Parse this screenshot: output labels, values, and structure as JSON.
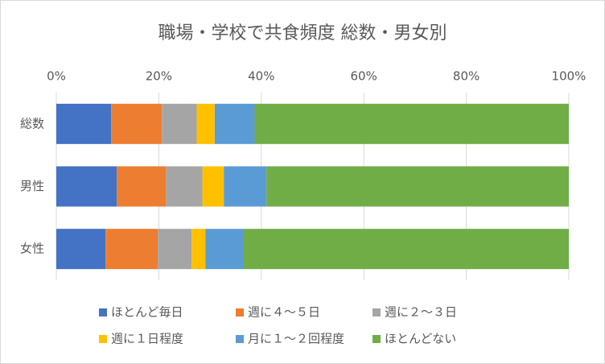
{
  "chart_data": {
    "type": "stacked_barh",
    "title": "職場・学校で共食頻度 総数・男女別",
    "categories": [
      "総数",
      "男性",
      "女性"
    ],
    "series": [
      {
        "name": "ほとんど毎日",
        "color": "#4472c4",
        "values": [
          10.7,
          11.8,
          9.6
        ]
      },
      {
        "name": "週に４～５日",
        "color": "#ed7d31",
        "values": [
          9.9,
          9.6,
          10.2
        ]
      },
      {
        "name": "週に２～３日",
        "color": "#a5a5a5",
        "values": [
          6.8,
          7.1,
          6.6
        ]
      },
      {
        "name": "週に１日程度",
        "color": "#ffc000",
        "values": [
          3.5,
          4.2,
          2.7
        ]
      },
      {
        "name": "月に１～２回程度",
        "color": "#5b9bd5",
        "values": [
          7.8,
          8.3,
          7.4
        ]
      },
      {
        "name": "ほとんどない",
        "color": "#70ad47",
        "values": [
          61.3,
          59.0,
          63.5
        ]
      }
    ],
    "xlim": [
      0,
      100
    ],
    "xticks": [
      {
        "value": 0,
        "label": "0%"
      },
      {
        "value": 20,
        "label": "20%"
      },
      {
        "value": 40,
        "label": "40%"
      },
      {
        "value": 60,
        "label": "60%"
      },
      {
        "value": 80,
        "label": "80%"
      },
      {
        "value": 100,
        "label": "100%"
      }
    ],
    "grid": true
  }
}
